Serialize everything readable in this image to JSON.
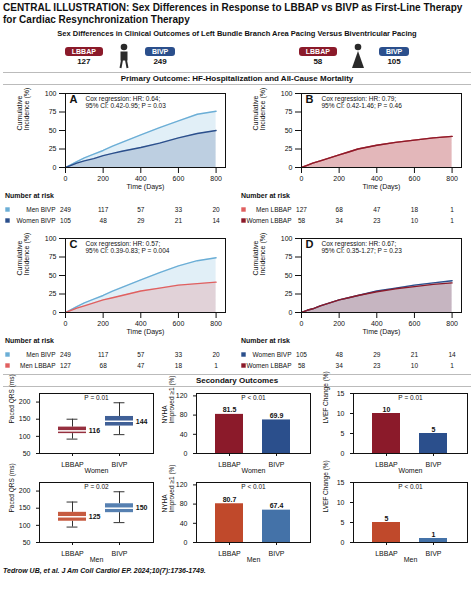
{
  "title": "CENTRAL ILLUSTRATION: Sex Differences in Response to LBBAP vs BIVP as First-Line Therapy for Cardiac Resynchronization Therapy",
  "subtitle": "Sex Differences in Clinical Outcomes of Left Bundle Branch Area Pacing Versus Biventricular Pacing",
  "counts": [
    {
      "label": "LBBAP",
      "value": 127,
      "color": "#8B1A2A"
    },
    {
      "label": "BIVP",
      "value": 249,
      "color": "#2B4F8C"
    },
    {
      "label": "LBBAP",
      "value": 58,
      "color": "#8B1A2A"
    },
    {
      "label": "BIVP",
      "value": 105,
      "color": "#2B4F8C"
    }
  ],
  "sections": [
    "Primary Outcome: HF-Hospitalization and All-Cause Mortality",
    "Secondary Outcomes"
  ],
  "caption": "Tedrow UB, et al. J Am Coll Cardiol EP. 2024;10(7):1736-1749.",
  "chart_data": [
    {
      "type": "line",
      "title": "A",
      "annotation": "Cox regression: HR: 0.64;\n95% CI: 0.42-0.95; P = 0.03",
      "xlabel": "Time (Days)",
      "ylabel": "Cumulative\nIncidence (%)",
      "x": [
        0,
        30,
        60,
        100,
        150,
        200,
        250,
        300,
        400,
        500,
        600,
        700,
        800
      ],
      "xlim": [
        0,
        850
      ],
      "xticks": [
        0,
        200,
        400,
        600,
        800
      ],
      "ylim": [
        0,
        100
      ],
      "yticks": [
        0,
        25,
        50,
        75,
        100
      ],
      "at_risk_title": "Number at risk",
      "series": [
        {
          "name": "Men BIVP",
          "color": "#6BAED6",
          "values": [
            0,
            4,
            8,
            13,
            18,
            23,
            29,
            34,
            44,
            54,
            63,
            72,
            76
          ],
          "at_risk": [
            249,
            117,
            57,
            33,
            20
          ]
        },
        {
          "name": "Women BIVP",
          "color": "#2B4F8C",
          "values": [
            0,
            3,
            6,
            9,
            12,
            16,
            19,
            22,
            27,
            33,
            40,
            46,
            50
          ],
          "at_risk": [
            105,
            48,
            29,
            21,
            14
          ]
        }
      ]
    },
    {
      "type": "line",
      "title": "B",
      "annotation": "Cox regression: HR: 0.79;\n95% CI: 0.42-1.46; P = 0.46",
      "xlabel": "Time (Days)",
      "ylabel": "Cumulative\nIncidence (%)",
      "x": [
        0,
        30,
        60,
        100,
        150,
        200,
        250,
        300,
        400,
        500,
        600,
        700,
        800
      ],
      "xlim": [
        0,
        850
      ],
      "xticks": [
        0,
        200,
        400,
        600,
        800
      ],
      "ylim": [
        0,
        100
      ],
      "yticks": [
        0,
        25,
        50,
        75,
        100
      ],
      "at_risk_title": "Number at risk",
      "series": [
        {
          "name": "Men LBBAP",
          "color": "#E06060",
          "values": [
            0,
            3,
            6,
            9,
            13,
            17,
            21,
            25,
            30,
            34,
            37,
            40,
            42
          ],
          "at_risk": [
            127,
            68,
            47,
            18,
            1
          ]
        },
        {
          "name": "Women LBBAP",
          "color": "#8B1A2A",
          "values": [
            0,
            3,
            6,
            9,
            13,
            17,
            21,
            25,
            30,
            34,
            37,
            40,
            42
          ],
          "at_risk": [
            58,
            34,
            23,
            10,
            1
          ]
        }
      ]
    },
    {
      "type": "line",
      "title": "C",
      "annotation": "Cox regression: HR: 0.57;\n95% CI: 0.39-0.83; P = 0.004",
      "xlabel": "Time (Days)",
      "ylabel": "Cumulative\nIncidence (%)",
      "x": [
        0,
        30,
        60,
        100,
        150,
        200,
        250,
        300,
        400,
        500,
        600,
        700,
        800
      ],
      "xlim": [
        0,
        850
      ],
      "xticks": [
        0,
        200,
        400,
        600,
        800
      ],
      "ylim": [
        0,
        100
      ],
      "yticks": [
        0,
        25,
        50,
        75,
        100
      ],
      "at_risk_title": "Number at risk",
      "series": [
        {
          "name": "Men BIVP",
          "color": "#6BAED6",
          "values": [
            0,
            4,
            8,
            13,
            18,
            23,
            29,
            34,
            44,
            54,
            63,
            70,
            74
          ],
          "at_risk": [
            249,
            117,
            57,
            33,
            20
          ]
        },
        {
          "name": "Men LBBAP",
          "color": "#E06060",
          "values": [
            0,
            3,
            6,
            9,
            13,
            17,
            20,
            23,
            29,
            33,
            37,
            39,
            41
          ],
          "at_risk": [
            127,
            68,
            47,
            18,
            1
          ]
        }
      ]
    },
    {
      "type": "line",
      "title": "D",
      "annotation": "Cox regression: HR: 0.67;\n95% CI: 0.35-1.27; P = 0.23",
      "xlabel": "Time (Days)",
      "ylabel": "Cumulative\nIncidence (%)",
      "x": [
        0,
        30,
        60,
        100,
        150,
        200,
        250,
        300,
        400,
        500,
        600,
        700,
        800
      ],
      "xlim": [
        0,
        850
      ],
      "xticks": [
        0,
        200,
        400,
        600,
        800
      ],
      "ylim": [
        0,
        100
      ],
      "yticks": [
        0,
        25,
        50,
        75,
        100
      ],
      "at_risk_title": "Number at risk",
      "series": [
        {
          "name": "Women BIVP",
          "color": "#2B4F8C",
          "values": [
            0,
            3,
            5,
            9,
            13,
            17,
            20,
            23,
            29,
            33,
            37,
            40,
            43
          ],
          "at_risk": [
            105,
            48,
            29,
            21,
            14
          ]
        },
        {
          "name": "Women LBBAP",
          "color": "#8B1A2A",
          "values": [
            0,
            3,
            5,
            9,
            13,
            17,
            20,
            23,
            28,
            32,
            35,
            38,
            40
          ],
          "at_risk": [
            58,
            34,
            23,
            10,
            1
          ]
        }
      ]
    },
    {
      "type": "box",
      "categories": [
        "LBBAP",
        "BIVP"
      ],
      "colors": [
        "#8B1A2A",
        "#2B4F8C"
      ],
      "median": [
        116,
        144
      ],
      "q1": [
        108,
        130
      ],
      "q3": [
        127,
        158
      ],
      "whislo": [
        92,
        105
      ],
      "whishi": [
        150,
        198
      ],
      "data_labels": true,
      "annotation": "P = 0.01",
      "xlabel": "Women",
      "ylabel": "Paced QRS (ms)",
      "ylim": [
        50,
        225
      ],
      "yticks": [
        50,
        100,
        150,
        200
      ]
    },
    {
      "type": "bar",
      "categories": [
        "LBBAP",
        "BIVP"
      ],
      "colors": [
        "#8B1A2A",
        "#2B4F8C"
      ],
      "values": [
        81.5,
        69.9
      ],
      "data_labels": true,
      "annotation": "P < 0.01",
      "xlabel": "Women",
      "ylabel": "NYHA\nImproved ≥1 (%)",
      "ylim": [
        0,
        125
      ],
      "yticks": [
        0,
        40,
        80,
        120
      ]
    },
    {
      "type": "bar",
      "categories": [
        "LBBAP",
        "BIVP"
      ],
      "colors": [
        "#8B1A2A",
        "#2B4F8C"
      ],
      "values": [
        10,
        5
      ],
      "data_labels": true,
      "annotation": "P = 0.01",
      "xlabel": "Women",
      "ylabel": "LVEF Change (%)",
      "ylim": [
        0,
        15
      ],
      "yticks": [
        0,
        5,
        10,
        15
      ]
    },
    {
      "type": "box",
      "categories": [
        "LBBAP",
        "BIVP"
      ],
      "colors": [
        "#C0492B",
        "#4472A8"
      ],
      "median": [
        125,
        150
      ],
      "q1": [
        112,
        137
      ],
      "q3": [
        138,
        163
      ],
      "whislo": [
        95,
        108
      ],
      "whishi": [
        168,
        198
      ],
      "data_labels": true,
      "annotation": "P = 0.02",
      "xlabel": "Men",
      "ylabel": "Paced QRS (ms)",
      "ylim": [
        50,
        225
      ],
      "yticks": [
        50,
        100,
        150,
        200
      ]
    },
    {
      "type": "bar",
      "categories": [
        "LBBAP",
        "BIVP"
      ],
      "colors": [
        "#C0492B",
        "#4472A8"
      ],
      "values": [
        80.7,
        67.4
      ],
      "data_labels": true,
      "annotation": "P < 0.01",
      "xlabel": "Men",
      "ylabel": "NYHA\nImproved ≥1 (%)",
      "ylim": [
        0,
        125
      ],
      "yticks": [
        0,
        40,
        80,
        120
      ]
    },
    {
      "type": "bar",
      "categories": [
        "LBBAP",
        "BIVP"
      ],
      "colors": [
        "#C0492B",
        "#4472A8"
      ],
      "values": [
        5,
        1
      ],
      "data_labels": true,
      "annotation": "P < 0.01",
      "xlabel": "Men",
      "ylabel": "LVEF Change (%)",
      "ylim": [
        0,
        15
      ],
      "yticks": [
        0,
        5,
        10,
        15
      ]
    }
  ]
}
